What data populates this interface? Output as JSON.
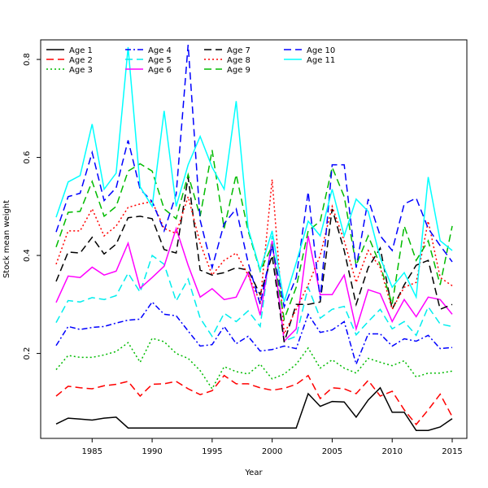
{
  "chart_data": {
    "type": "line",
    "title": "",
    "xlabel": "Year",
    "ylabel": "Stock mean weight",
    "xlim": [
      1982,
      2015
    ],
    "ylim": [
      0.03,
      0.83
    ],
    "x_ticks": [
      1985,
      1990,
      1995,
      2000,
      2005,
      2010,
      2015
    ],
    "y_ticks": [
      0.2,
      0.4,
      0.6,
      0.8
    ],
    "grid": false,
    "legend_position": "top-left",
    "x": [
      1982,
      1983,
      1984,
      1985,
      1986,
      1987,
      1988,
      1989,
      1990,
      1991,
      1992,
      1993,
      1994,
      1995,
      1996,
      1997,
      1998,
      1999,
      2000,
      2001,
      2002,
      2003,
      2004,
      2005,
      2006,
      2007,
      2008,
      2009,
      2010,
      2011,
      2012,
      2013,
      2014,
      2015
    ],
    "series": [
      {
        "name": "Age 1",
        "color": "#000000",
        "dash": "solid",
        "values": [
          0.056,
          0.068,
          0.066,
          0.064,
          0.068,
          0.07,
          0.048,
          0.048,
          0.048,
          0.048,
          0.048,
          0.048,
          0.048,
          0.048,
          0.048,
          0.048,
          0.048,
          0.048,
          0.048,
          0.048,
          0.048,
          0.118,
          0.092,
          0.102,
          0.101,
          0.07,
          0.105,
          0.13,
          0.08,
          0.08,
          0.043,
          0.043,
          0.05,
          0.067
        ]
      },
      {
        "name": "Age 2",
        "color": "#ff0000",
        "dash": "longdash",
        "values": [
          0.113,
          0.133,
          0.13,
          0.128,
          0.134,
          0.137,
          0.143,
          0.113,
          0.137,
          0.138,
          0.143,
          0.128,
          0.116,
          0.124,
          0.155,
          0.138,
          0.138,
          0.13,
          0.125,
          0.129,
          0.137,
          0.155,
          0.108,
          0.13,
          0.128,
          0.118,
          0.145,
          0.113,
          0.123,
          0.085,
          0.055,
          0.085,
          0.117,
          0.071
        ]
      },
      {
        "name": "Age 3",
        "color": "#00bb00",
        "dash": "dot",
        "values": [
          0.167,
          0.196,
          0.192,
          0.192,
          0.197,
          0.204,
          0.222,
          0.182,
          0.231,
          0.224,
          0.2,
          0.19,
          0.165,
          0.128,
          0.173,
          0.163,
          0.158,
          0.178,
          0.148,
          0.158,
          0.178,
          0.211,
          0.17,
          0.187,
          0.17,
          0.16,
          0.19,
          0.182,
          0.175,
          0.185,
          0.152,
          0.16,
          0.16,
          0.164
        ]
      },
      {
        "name": "Age 4",
        "color": "#0000ff",
        "dash": "dashdot",
        "values": [
          0.216,
          0.255,
          0.249,
          0.253,
          0.255,
          0.262,
          0.268,
          0.27,
          0.305,
          0.28,
          0.277,
          0.246,
          0.215,
          0.218,
          0.255,
          0.22,
          0.235,
          0.205,
          0.208,
          0.215,
          0.21,
          0.28,
          0.243,
          0.248,
          0.265,
          0.178,
          0.24,
          0.24,
          0.215,
          0.23,
          0.225,
          0.237,
          0.21,
          0.212
        ]
      },
      {
        "name": "Age 5",
        "color": "#00eeee",
        "dash": "longdash",
        "values": [
          0.263,
          0.308,
          0.305,
          0.314,
          0.31,
          0.318,
          0.364,
          0.325,
          0.4,
          0.382,
          0.307,
          0.352,
          0.272,
          0.235,
          0.282,
          0.265,
          0.287,
          0.255,
          0.44,
          0.225,
          0.235,
          0.335,
          0.272,
          0.29,
          0.296,
          0.238,
          0.265,
          0.29,
          0.25,
          0.265,
          0.237,
          0.295,
          0.26,
          0.255
        ]
      },
      {
        "name": "Age 6",
        "color": "#ff00ff",
        "dash": "solid",
        "values": [
          0.304,
          0.358,
          0.355,
          0.376,
          0.36,
          0.368,
          0.425,
          0.333,
          0.355,
          0.378,
          0.455,
          0.38,
          0.315,
          0.332,
          0.31,
          0.315,
          0.365,
          0.278,
          0.43,
          0.225,
          0.25,
          0.44,
          0.32,
          0.32,
          0.36,
          0.25,
          0.33,
          0.322,
          0.265,
          0.31,
          0.275,
          0.315,
          0.31,
          0.28
        ]
      },
      {
        "name": "Age 7",
        "color": "#000000",
        "dash": "longdash",
        "values": [
          0.347,
          0.407,
          0.405,
          0.437,
          0.403,
          0.423,
          0.477,
          0.48,
          0.475,
          0.412,
          0.405,
          0.56,
          0.37,
          0.36,
          0.365,
          0.375,
          0.37,
          0.32,
          0.4,
          0.223,
          0.3,
          0.3,
          0.305,
          0.495,
          0.41,
          0.3,
          0.375,
          0.415,
          0.29,
          0.34,
          0.38,
          0.39,
          0.29,
          0.3
        ]
      },
      {
        "name": "Age 8",
        "color": "#ff0000",
        "dash": "dot",
        "values": [
          0.382,
          0.45,
          0.45,
          0.495,
          0.44,
          0.46,
          0.498,
          0.505,
          0.51,
          0.455,
          0.445,
          0.52,
          0.425,
          0.36,
          0.39,
          0.405,
          0.36,
          0.305,
          0.555,
          0.24,
          0.29,
          0.34,
          0.4,
          0.5,
          0.43,
          0.345,
          0.41,
          0.375,
          0.29,
          0.335,
          0.345,
          0.47,
          0.355,
          0.338
        ]
      },
      {
        "name": "Age 9",
        "color": "#00bb00",
        "dash": "longdash",
        "values": [
          0.417,
          0.488,
          0.49,
          0.551,
          0.48,
          0.5,
          0.572,
          0.587,
          0.572,
          0.495,
          0.475,
          0.565,
          0.48,
          0.615,
          0.455,
          0.565,
          0.45,
          0.368,
          0.42,
          0.27,
          0.335,
          0.45,
          0.47,
          0.58,
          0.52,
          0.38,
          0.44,
          0.38,
          0.3,
          0.46,
          0.39,
          0.43,
          0.34,
          0.46
        ]
      },
      {
        "name": "Age 10",
        "color": "#0000ff",
        "dash": "longdash",
        "values": [
          0.448,
          0.52,
          0.527,
          0.61,
          0.512,
          0.538,
          0.635,
          0.535,
          0.51,
          0.45,
          0.525,
          0.83,
          0.472,
          0.375,
          0.465,
          0.495,
          0.385,
          0.3,
          0.42,
          0.295,
          0.355,
          0.53,
          0.31,
          0.585,
          0.585,
          0.375,
          0.515,
          0.44,
          0.41,
          0.505,
          0.517,
          0.455,
          0.42,
          0.387
        ]
      },
      {
        "name": "Age 11",
        "color": "#00ffff",
        "dash": "solid",
        "values": [
          0.478,
          0.55,
          0.563,
          0.668,
          0.535,
          0.568,
          0.825,
          0.54,
          0.5,
          0.695,
          0.5,
          0.585,
          0.643,
          0.58,
          0.535,
          0.715,
          0.455,
          0.37,
          0.45,
          0.305,
          0.385,
          0.47,
          0.44,
          0.535,
          0.44,
          0.515,
          0.49,
          0.395,
          0.335,
          0.365,
          0.315,
          0.56,
          0.43,
          0.41
        ]
      }
    ]
  }
}
